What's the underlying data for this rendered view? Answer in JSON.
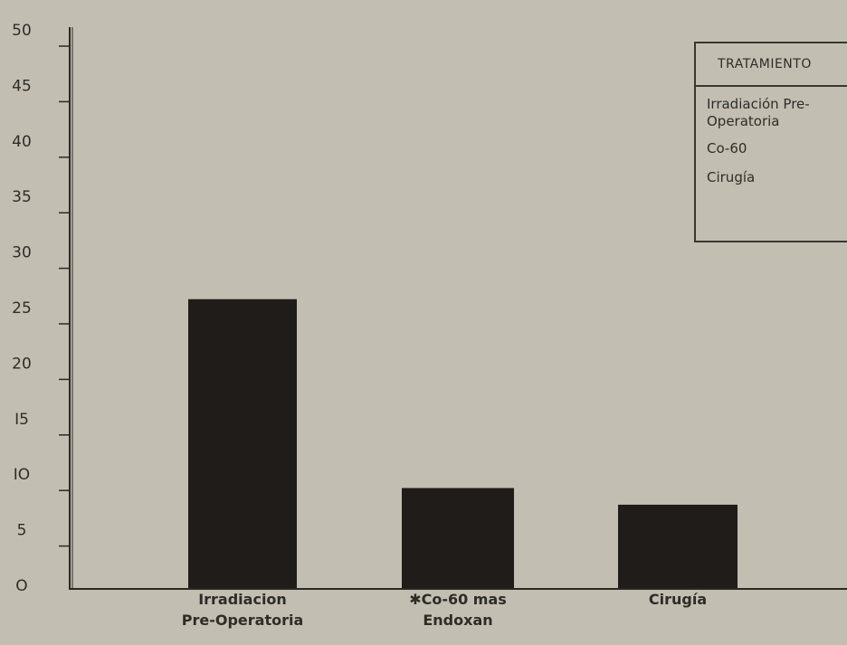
{
  "chart_data": {
    "type": "bar",
    "categories": [
      "Irradiacion\nPre-Operatoria",
      "✱Co-60 mas\nEndoxan",
      "Cirugía"
    ],
    "values": [
      26,
      9,
      7.5
    ],
    "ylim": [
      0,
      50
    ],
    "yticks": [
      0,
      5,
      10,
      15,
      20,
      25,
      30,
      35,
      40,
      45,
      50
    ],
    "ytick_labels": [
      "O",
      "5",
      "IO",
      "I5",
      "20",
      "25",
      "30",
      "35",
      "40",
      "45",
      "50"
    ],
    "bar_color": "#1f1c1a",
    "background_color": "#c2bfb2",
    "grid": false,
    "legend": {
      "title": "TRATAMIENTO",
      "items": [
        "Irradiación Pre-\nOperatoria",
        "Co-60",
        "Cirugía"
      ],
      "placement": "top-right"
    }
  }
}
